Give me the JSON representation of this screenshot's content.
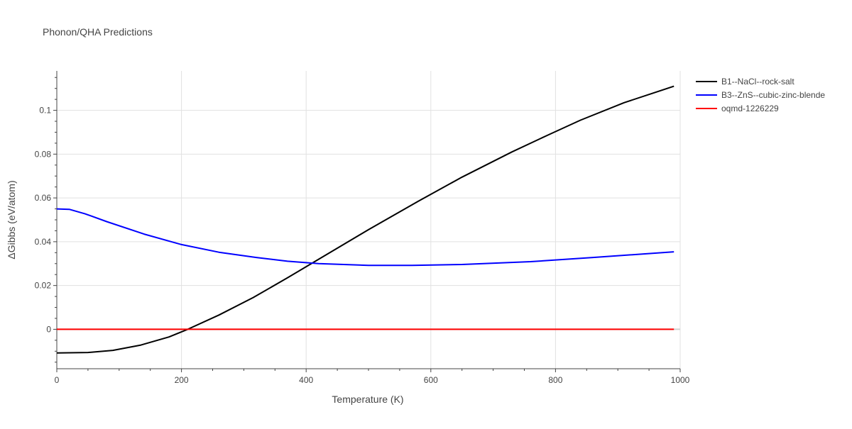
{
  "chart_data": {
    "type": "line",
    "title": "Phonon/QHA Predictions",
    "xlabel": "Temperature (K)",
    "ylabel": "ΔGibbs (eV/atom)",
    "xlim": [
      0,
      1000
    ],
    "ylim": [
      -0.018,
      0.118
    ],
    "grid": true,
    "legend_position": "top-right outside",
    "xticks": [
      0,
      200,
      400,
      600,
      800,
      1000
    ],
    "xtick_labels": [
      "0",
      "200",
      "400",
      "600",
      "800",
      "1000"
    ],
    "yticks": [
      0,
      0.02,
      0.04,
      0.06,
      0.08,
      0.1
    ],
    "ytick_labels": [
      "0",
      "0.02",
      "0.04",
      "0.06",
      "0.08",
      "0.1"
    ],
    "series": [
      {
        "name": "B1--NaCl--rock-salt",
        "color": "#000000",
        "x": [
          0,
          20,
          50,
          90,
          135,
          180,
          210,
          260,
          315,
          370,
          420,
          500,
          580,
          650,
          730,
          790,
          840,
          910,
          990
        ],
        "y": [
          -0.0108,
          -0.0107,
          -0.0106,
          -0.0096,
          -0.0072,
          -0.0035,
          0.0,
          0.0065,
          0.0145,
          0.0235,
          0.032,
          0.0455,
          0.0585,
          0.0695,
          0.081,
          0.089,
          0.0955,
          0.1035,
          0.111
        ]
      },
      {
        "name": "B3--ZnS--cubic-zinc-blende",
        "color": "#0000ff",
        "x": [
          0,
          20,
          45,
          80,
          140,
          200,
          260,
          320,
          370,
          420,
          500,
          570,
          650,
          760,
          860,
          990
        ],
        "y": [
          0.055,
          0.0548,
          0.0528,
          0.0492,
          0.0435,
          0.0387,
          0.0352,
          0.0328,
          0.0311,
          0.03,
          0.0292,
          0.0292,
          0.0296,
          0.0309,
          0.0328,
          0.0354
        ]
      },
      {
        "name": "oqmd-1226229",
        "color": "#ff0000",
        "x": [
          0,
          990
        ],
        "y": [
          0,
          0
        ]
      }
    ]
  }
}
